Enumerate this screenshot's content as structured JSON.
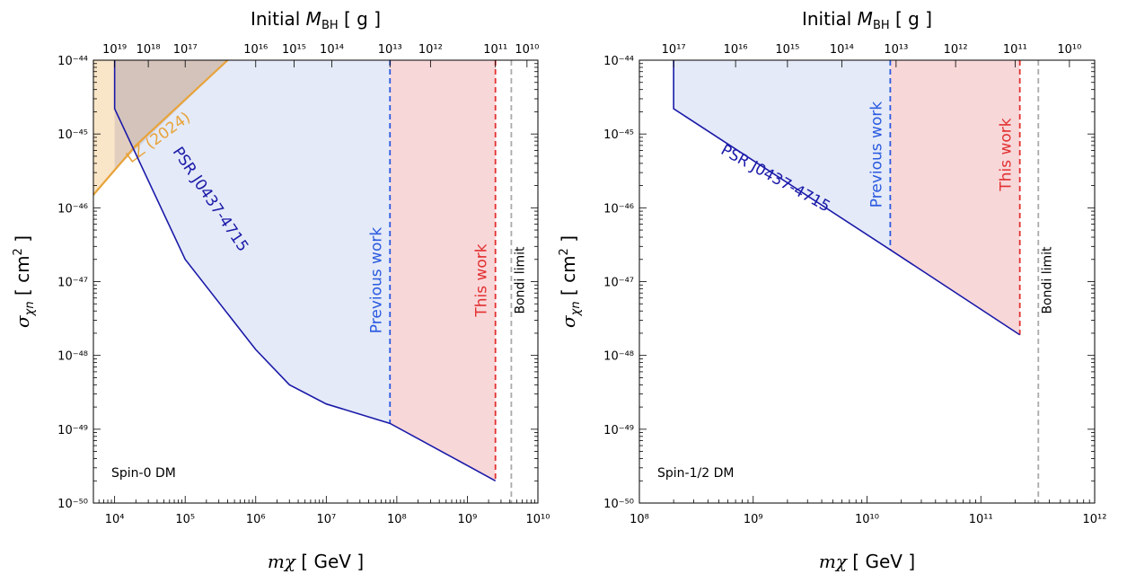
{
  "chart_data": [
    {
      "type": "area",
      "panel_label": "Spin-0 DM",
      "xlabel": "mχ [ GeV ]",
      "ylabel": "σχn [ cm2 ]",
      "top_label": "Initial MBH [ g ]",
      "x_scale": "log",
      "y_scale": "log",
      "xlim": [
        5000,
        10000000000
      ],
      "ylim": [
        1e-50,
        1e-44
      ],
      "x_ticks": [
        10000,
        100000,
        1000000,
        10000000,
        100000000,
        1000000000,
        10000000000
      ],
      "x_tick_labels": [
        "10⁴",
        "10⁵",
        "10⁶",
        "10⁷",
        "10⁸",
        "10⁹",
        "10¹⁰"
      ],
      "y_ticks": [
        1e-50,
        1e-49,
        1e-48,
        1e-47,
        1e-46,
        1e-45,
        1e-44
      ],
      "y_tick_labels": [
        "10⁻⁵⁰",
        "10⁻⁴⁹",
        "10⁻⁴⁸",
        "10⁻⁴⁷",
        "10⁻⁴⁶",
        "10⁻⁴⁵",
        "10⁻⁴⁴"
      ],
      "top_ticks": [
        {
          "m": 10000,
          "label": "10¹⁹"
        },
        {
          "m": 30000,
          "label": "10¹⁸"
        },
        {
          "m": 100000,
          "label": "10¹⁷"
        },
        {
          "m": 1000000,
          "label": "10¹⁶"
        },
        {
          "m": 3500000,
          "label": "10¹⁵"
        },
        {
          "m": 12000000,
          "label": "10¹⁴"
        },
        {
          "m": 80000000,
          "label": "10¹³"
        },
        {
          "m": 300000000,
          "label": "10¹²"
        },
        {
          "m": 2500000000,
          "label": "10¹¹"
        },
        {
          "m": 7000000000,
          "label": "10¹⁰"
        }
      ],
      "grid": false,
      "series": [
        {
          "name": "PSR J0437-4715",
          "color": "#1a1aa8",
          "points": [
            [
              10000,
              2.2e-45
            ],
            [
              100000,
              2e-47
            ],
            [
              1000000,
              1.2e-48
            ],
            [
              3000000,
              4e-49
            ],
            [
              10000000,
              2.2e-49
            ],
            [
              80000000,
              1.2e-49
            ],
            [
              2500000000,
              2e-50
            ]
          ]
        },
        {
          "name": "LZ (2024)",
          "color": "#e8a33a",
          "points": [
            [
              5000,
              1.5e-46
            ],
            [
              20000,
              7e-46
            ],
            [
              400000,
              1e-44
            ]
          ]
        }
      ],
      "regions": [
        {
          "name": "Previous work",
          "color": "#2a5adf",
          "fill": "#e4eaf8",
          "m_max": 80000000
        },
        {
          "name": "This work",
          "color": "#e23030",
          "fill": "#f8d7d9",
          "m_max": 2500000000
        }
      ],
      "bondi_limit": {
        "name": "Bondi limit",
        "m": 4200000000
      }
    },
    {
      "type": "area",
      "panel_label": "Spin-1/2 DM",
      "xlabel": "mχ [ GeV ]",
      "ylabel": "σχn [ cm2 ]",
      "top_label": "Initial MBH [ g ]",
      "x_scale": "log",
      "y_scale": "log",
      "xlim": [
        100000000,
        1000000000000
      ],
      "ylim": [
        1e-50,
        1e-44
      ],
      "x_ticks": [
        100000000,
        1000000000,
        10000000000,
        100000000000,
        1000000000000
      ],
      "x_tick_labels": [
        "10⁸",
        "10⁹",
        "10¹⁰",
        "10¹¹",
        "10¹²"
      ],
      "y_ticks": [
        1e-50,
        1e-49,
        1e-48,
        1e-47,
        1e-46,
        1e-45,
        1e-44
      ],
      "y_tick_labels": [
        "10⁻⁵⁰",
        "10⁻⁴⁹",
        "10⁻⁴⁸",
        "10⁻⁴⁷",
        "10⁻⁴⁶",
        "10⁻⁴⁵",
        "10⁻⁴⁴"
      ],
      "top_ticks": [
        {
          "m": 200000000,
          "label": "10¹⁷"
        },
        {
          "m": 700000000,
          "label": "10¹⁶"
        },
        {
          "m": 2000000000,
          "label": "10¹⁵"
        },
        {
          "m": 6000000000,
          "label": "10¹⁴"
        },
        {
          "m": 18000000000,
          "label": "10¹³"
        },
        {
          "m": 60000000000,
          "label": "10¹²"
        },
        {
          "m": 200000000000,
          "label": "10¹¹"
        },
        {
          "m": 600000000000,
          "label": "10¹⁰"
        }
      ],
      "grid": false,
      "series": [
        {
          "name": "PSR J0437-4715",
          "color": "#1a1aa8",
          "points": [
            [
              200000000,
              2.2e-45
            ],
            [
              16000000000,
              2.7e-47
            ],
            [
              220000000000,
              1.9e-48
            ]
          ]
        }
      ],
      "regions": [
        {
          "name": "Previous work",
          "color": "#2a5adf",
          "fill": "#e4eaf8",
          "m_max": 16000000000
        },
        {
          "name": "This work",
          "color": "#e23030",
          "fill": "#f8d7d9",
          "m_max": 220000000000
        }
      ],
      "bondi_limit": {
        "name": "Bondi limit",
        "m": 320000000000
      }
    }
  ]
}
